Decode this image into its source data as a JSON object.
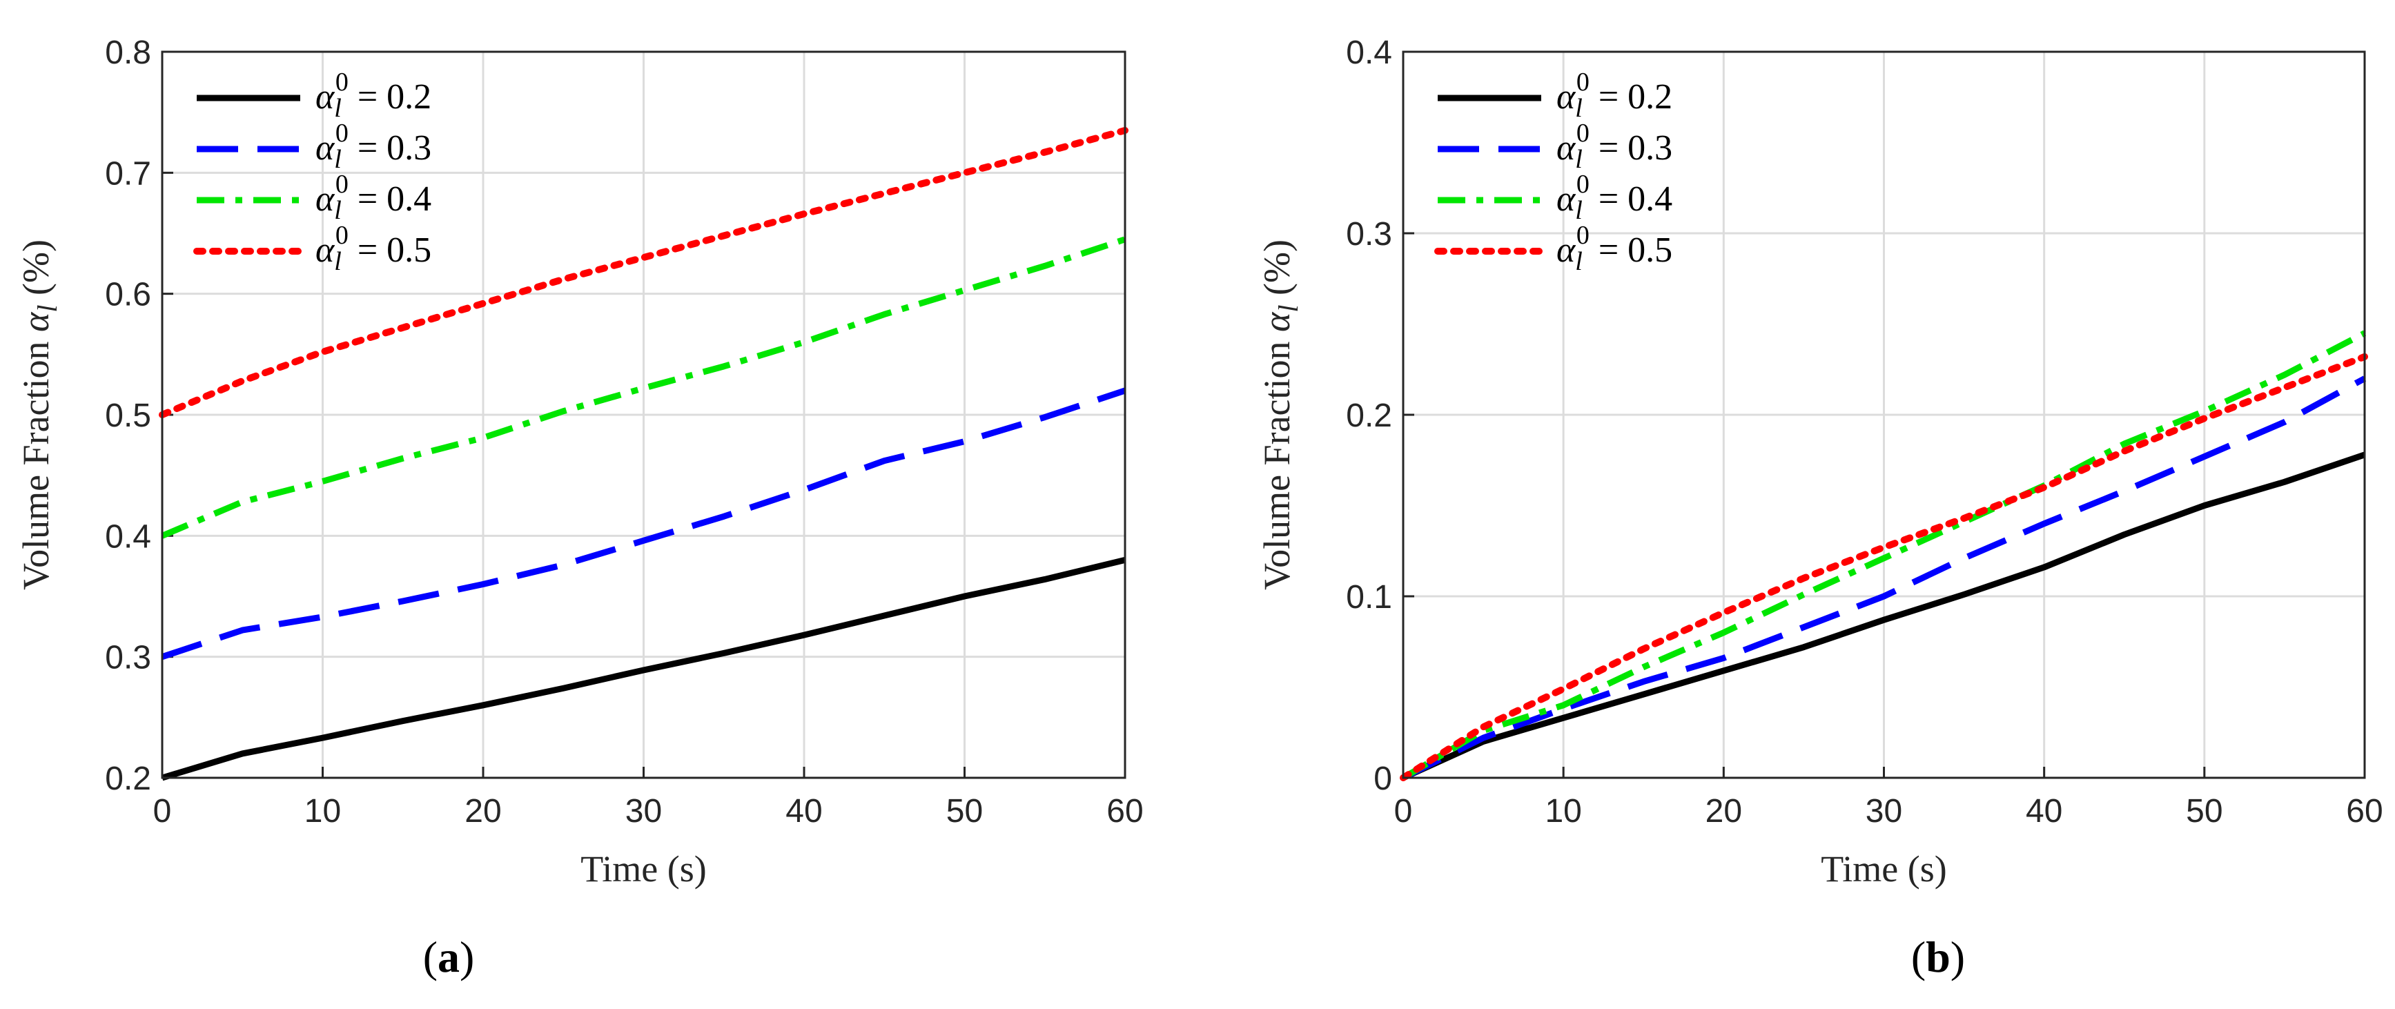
{
  "chart_data": [
    {
      "type": "line",
      "panel_label": "a",
      "xlabel": "Time (s)",
      "ylabel": "Volume Fraction αₗ (%)",
      "xlim": [
        0,
        60
      ],
      "ylim": [
        0.2,
        0.8
      ],
      "xticks": [
        "0",
        "10",
        "20",
        "30",
        "40",
        "50",
        "60"
      ],
      "yticks": [
        "0.2",
        "0.3",
        "0.4",
        "0.5",
        "0.6",
        "0.7",
        "0.8"
      ],
      "grid": true,
      "legend_position": "top-left",
      "x": [
        0,
        5,
        10,
        15,
        20,
        25,
        30,
        35,
        40,
        45,
        50,
        55,
        60
      ],
      "series": [
        {
          "name": "αₗ⁰ = 0.2",
          "color": "#000000",
          "style": "solid",
          "values": [
            0.2,
            0.22,
            0.233,
            0.247,
            0.26,
            0.274,
            0.289,
            0.303,
            0.318,
            0.334,
            0.35,
            0.364,
            0.38
          ]
        },
        {
          "name": "αₗ⁰ = 0.3",
          "color": "#0000ff",
          "style": "dashed",
          "values": [
            0.3,
            0.322,
            0.333,
            0.346,
            0.36,
            0.376,
            0.396,
            0.416,
            0.438,
            0.462,
            0.478,
            0.498,
            0.52
          ]
        },
        {
          "name": "αₗ⁰ = 0.4",
          "color": "#00e600",
          "style": "dashdot",
          "values": [
            0.4,
            0.428,
            0.445,
            0.464,
            0.481,
            0.503,
            0.522,
            0.54,
            0.56,
            0.583,
            0.603,
            0.623,
            0.645
          ]
        },
        {
          "name": "αₗ⁰ = 0.5",
          "color": "#ff0000",
          "style": "dotted",
          "values": [
            0.5,
            0.528,
            0.552,
            0.572,
            0.592,
            0.612,
            0.63,
            0.648,
            0.666,
            0.683,
            0.7,
            0.717,
            0.735
          ]
        }
      ]
    },
    {
      "type": "line",
      "panel_label": "b",
      "xlabel": "Time (s)",
      "ylabel": "Volume Fraction αₗ (%)",
      "xlim": [
        0,
        60
      ],
      "ylim": [
        0,
        0.4
      ],
      "xticks": [
        "0",
        "10",
        "20",
        "30",
        "40",
        "50",
        "60"
      ],
      "yticks": [
        "0",
        "0.1",
        "0.2",
        "0.3",
        "0.4"
      ],
      "grid": true,
      "legend_position": "top-left",
      "x": [
        0,
        5,
        10,
        15,
        20,
        25,
        30,
        35,
        40,
        45,
        50,
        55,
        60
      ],
      "series": [
        {
          "name": "αₗ⁰ = 0.2",
          "color": "#000000",
          "style": "solid",
          "values": [
            0.0,
            0.02,
            0.033,
            0.046,
            0.059,
            0.072,
            0.087,
            0.101,
            0.116,
            0.134,
            0.15,
            0.163,
            0.178
          ]
        },
        {
          "name": "αₗ⁰ = 0.3",
          "color": "#0000ff",
          "style": "dashed",
          "values": [
            0.0,
            0.022,
            0.038,
            0.053,
            0.066,
            0.083,
            0.1,
            0.121,
            0.14,
            0.158,
            0.177,
            0.196,
            0.22
          ]
        },
        {
          "name": "αₗ⁰ = 0.4",
          "color": "#00e600",
          "style": "dashdot",
          "values": [
            0.0,
            0.026,
            0.04,
            0.061,
            0.08,
            0.101,
            0.121,
            0.141,
            0.161,
            0.184,
            0.202,
            0.222,
            0.245
          ]
        },
        {
          "name": "αₗ⁰ = 0.5",
          "color": "#ff0000",
          "style": "dotted",
          "values": [
            0.0,
            0.028,
            0.049,
            0.071,
            0.091,
            0.11,
            0.127,
            0.143,
            0.16,
            0.18,
            0.198,
            0.215,
            0.232
          ]
        }
      ]
    }
  ],
  "captions": [
    "(a)",
    "(b)"
  ]
}
